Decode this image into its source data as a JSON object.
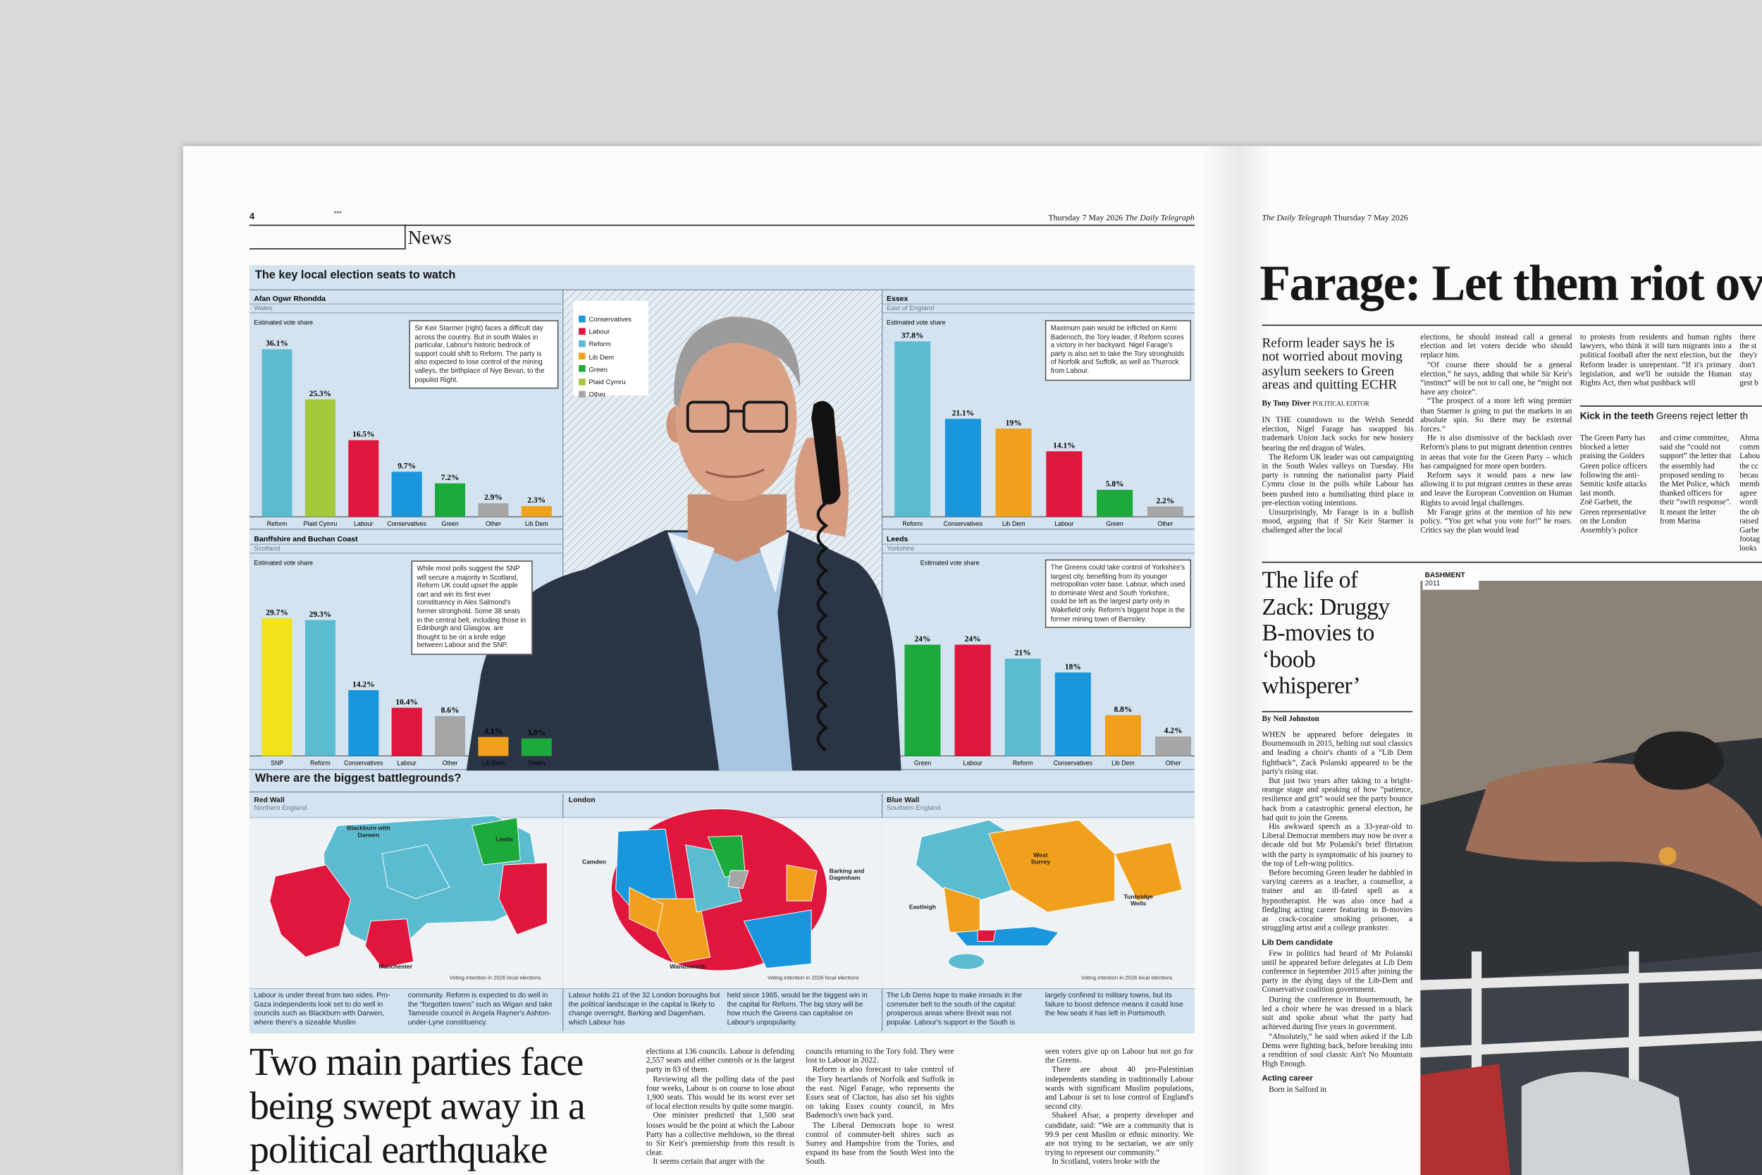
{
  "left_page": {
    "page_number": "4",
    "stars": "***",
    "dateline": "Thursday 7 May 2026",
    "paper": "The Daily Telegraph",
    "section": "News"
  },
  "infographic": {
    "title": "The key local election seats to watch",
    "legend": [
      {
        "name": "Conservatives",
        "color": "#1a96dd"
      },
      {
        "name": "Labour",
        "color": "#e0163c"
      },
      {
        "name": "Reform",
        "color": "#5bbcd1"
      },
      {
        "name": "Lib Dem",
        "color": "#f0a01c"
      },
      {
        "name": "Green",
        "color": "#1caa3c"
      },
      {
        "name": "Plaid Cymru",
        "color": "#a3c83a"
      },
      {
        "name": "Other",
        "color": "#a6a6a6"
      }
    ],
    "maps_title": "Where are the biggest battlegrounds?",
    "maps": [
      {
        "title": "Red Wall",
        "subtitle": "Northern England",
        "labels": [
          "Blackburn with Darwen",
          "Leeds",
          "Manchester"
        ],
        "source": "Voting intention in 2026 local elections",
        "caption": [
          "Labour is under threat from two sides. Pro-Gaza independents look set to do well in councils such as Blackburn with Darwen, where there's a sizeable Muslim",
          "community. Reform is expected to do well in the “forgotten towns” such as Wigan and take Tameside council in Angela Rayner's Ashton-under-Lyne constituency."
        ]
      },
      {
        "title": "London",
        "subtitle": "",
        "labels": [
          "Camden",
          "Barking and Dagenham",
          "Wandsworth"
        ],
        "source": "Voting intention in 2026 local elections",
        "caption": [
          "Labour holds 21 of the 32 London boroughs but the political landscape in the capital is likely to change overnight. Barking and Dagenham, which Labour has",
          "held since 1965, would be the biggest win in the capital for Reform. The big story will be how much the Greens can capitalise on Labour's unpopularity."
        ]
      },
      {
        "title": "Blue Wall",
        "subtitle": "Southern England",
        "labels": [
          "West Surrey",
          "Eastleigh",
          "Tunbridge Wells"
        ],
        "source": "Voting intention in 2026 local elections",
        "caption": [
          "The Lib Dems hope to make inroads in the commuter belt to the south of the capital: prosperous areas where Brexit was not popular. Labour's support in the South is",
          "largely confined to military towns, but its failure to boost defence means it could lose the few seats it has left in Portsmouth."
        ]
      }
    ]
  },
  "chart_data": [
    {
      "type": "bar",
      "title": "Afan Ogwr Rhondda",
      "subtitle": "Wales",
      "y_label": "Estimated vote share",
      "annotation": "Sir Keir Starmer (right) faces a difficult day across the country. But in south Wales in particular, Labour's historic bedrock of support could shift to Reform. The party is also expected to lose control of the mining valleys, the birthplace of Nye Bevan, to the populist Right.",
      "categories": [
        "Reform",
        "Plaid Cymru",
        "Labour",
        "Conservatives",
        "Green",
        "Other",
        "Lib Dem"
      ],
      "values": [
        36.1,
        25.3,
        16.5,
        9.7,
        7.2,
        2.9,
        2.3
      ],
      "value_labels": [
        "36.1%",
        "25.3%",
        "16.5%",
        "9.7%",
        "7.2%",
        "2.9%",
        "2.3%"
      ],
      "colors": [
        "#5bbcd1",
        "#a3c83a",
        "#e0163c",
        "#1a96dd",
        "#1caa3c",
        "#a6a6a6",
        "#f0a01c"
      ]
    },
    {
      "type": "bar",
      "title": "Banffshire and Buchan Coast",
      "subtitle": "Scotland",
      "y_label": "Estimated vote share",
      "annotation": "While most polls suggest the SNP will secure a majority in Scotland, Reform UK could upset the apple cart and win its first ever constituency in Alex Salmond's former stronghold. Some 38 seats in the central belt, including those in Edinburgh and Glasgow, are thought to be on a knife edge between Labour and the SNP.",
      "categories": [
        "SNP",
        "Reform",
        "Conservatives",
        "Labour",
        "Other",
        "Lib Dem",
        "Green"
      ],
      "values": [
        29.7,
        29.3,
        14.2,
        10.4,
        8.6,
        4.1,
        3.8
      ],
      "value_labels": [
        "29.7%",
        "29.3%",
        "14.2%",
        "10.4%",
        "8.6%",
        "4.1%",
        "3.8%"
      ],
      "colors": [
        "#f2e21c",
        "#5bbcd1",
        "#1a96dd",
        "#e0163c",
        "#a6a6a6",
        "#f0a01c",
        "#1caa3c"
      ]
    },
    {
      "type": "bar",
      "title": "Essex",
      "subtitle": "East of England",
      "y_label": "Estimated vote share",
      "annotation": "Maximum pain would be inflicted on Kemi Badenoch, the Tory leader, if Reform scores a victory in her backyard. Nigel Farage's party is also set to take the Tory strongholds of Norfolk and Suffolk, as well as Thurrock from Labour.",
      "categories": [
        "Reform",
        "Conservatives",
        "Lib Dem",
        "Labour",
        "Green",
        "Other"
      ],
      "values": [
        37.8,
        21.1,
        19,
        14.1,
        5.8,
        2.2
      ],
      "value_labels": [
        "37.8%",
        "21.1%",
        "19%",
        "14.1%",
        "5.8%",
        "2.2%"
      ],
      "colors": [
        "#5bbcd1",
        "#1a96dd",
        "#f0a01c",
        "#e0163c",
        "#1caa3c",
        "#a6a6a6"
      ]
    },
    {
      "type": "bar",
      "title": "Leeds",
      "subtitle": "Yorkshire",
      "y_label": "Estimated vote share",
      "annotation": "The Greens could take control of Yorkshire's largest city, benefiting from its younger metropolitan voter base. Labour, which used to dominate West and South Yorkshire, could be left as the largest party only in Wakefield only. Reform's biggest hope is the former mining town of Barnsley.",
      "categories": [
        "Green",
        "Labour",
        "Reform",
        "Conservatives",
        "Lib Dem",
        "Other"
      ],
      "values": [
        24,
        24,
        21,
        18,
        8.8,
        4.2
      ],
      "value_labels": [
        "24%",
        "24%",
        "21%",
        "18%",
        "8.8%",
        "4.2%"
      ],
      "colors": [
        "#1caa3c",
        "#e0163c",
        "#5bbcd1",
        "#1a96dd",
        "#f0a01c",
        "#a6a6a6"
      ]
    }
  ],
  "main_story": {
    "headline": "Two main parties face being swept away in a political earthquake",
    "columns": [
      [
        "elections at 136 councils. Labour is defending 2,557 seats and either controls or is the largest party in 83 of them.",
        "Reviewing all the polling data of the past four weeks, Labour is on course to lose about 1,900 seats. This would be its worst ever set of local election results by quite some margin.",
        "One minister predicted that 1,500 seat losses would be the point at which the Labour Party has a collective meltdown, so the threat to Sir Keir's premiership from this result is clear.",
        "It seems certain that anger with the"
      ],
      [
        "councils returning to the Tory fold. They were lost to Labour in 2022.",
        "Reform is also forecast to take control of the Tory heartlands of Norfolk and Suffolk in the east. Nigel Farage, who represents the Essex seat of Clacton, has also set his sights on taking Essex county council, in Mrs Badenoch's own back yard.",
        "The Liberal Democrats hope to wrest control of commuter-belt shires such as Surrey and Hampshire from the Tories, and expand its base from the South West into the South."
      ],
      [
        "seen voters give up on Labour but not go for the Greens.",
        "There are about 40 pro-Palestinian independents standing in traditionally Labour wards with significant Muslim populations, and Labour is set to lose control of England's second city.",
        "Shakeel Afsar, a property developer and candidate, said: “We are a community that is 99.9 per cent Muslim or ethnic minority. We are not trying to be sectarian, we are only trying to represent our community.”",
        "In Scotland, voters broke with the"
      ]
    ]
  },
  "right_page": {
    "paper": "The Daily Telegraph",
    "dateline": "Thursday 7 May 2026",
    "headline": "Farage: Let them riot ov",
    "standfirst": "Reform leader says he is not worried about moving asylum seekers to Green areas and quitting ECHR",
    "byline": "By Tony Diver",
    "byline_role": "POLITICAL EDITOR",
    "columns": [
      [
        "IN THE countdown to the Welsh Senedd election, Nigel Farage has swapped his trademark Union Jack socks for new hosiery bearing the red dragon of Wales.",
        "The Reform UK leader was out campaigning in the South Wales valleys on Tuesday. His party is running the nationalist party Plaid Cymru close in the polls while Labour has been pushed into a humiliating third place in pre-election voting intentions.",
        "Unsurprisingly, Mr Farage is in a bullish mood, arguing that if Sir Keir Starmer is challenged after the local"
      ],
      [
        "elections, he should instead call a general election and let voters decide who should replace him.",
        "“Of course there should be a general election,” he says, adding that while Sir Keir's “instinct” will be not to call one, he “might not have any choice”.",
        "“The prospect of a more left wing premier than Starmer is going to put the markets in an absolute spin. So there may be external forces.”",
        "He is also dismissive of the backlash over Reform's plans to put migrant detention centres in areas that vote for the Green Party – which has campaigned for more open borders.",
        "Reform says it would pass a new law allowing it to put migrant centres in these areas and leave the European Convention on Human Rights to avoid legal challenges.",
        "Mr Farage grins at the mention of his new policy. “You get what you vote for!” he roars. Critics say the plan would lead"
      ],
      [
        "to protests from residents and human rights lawyers, who think it will turn migrants into a political football after the next election, but the Reform leader is unrepentant. “If it's primary legislation, and we'll be outside the Human Rights Act, then what pushback will"
      ],
      [
        "there",
        "the st",
        "they'r",
        "don't",
        "stay",
        "gest b"
      ]
    ],
    "brief": {
      "kicker": "Kick in the teeth",
      "headline": "Greens reject letter th",
      "columns": [
        [
          "The Green Party has blocked a letter praising the Golders Green police officers following the anti-Semitic knife attacks last month.",
          "Zoë Garbett, the Green representative on the London Assembly's police"
        ],
        [
          "and crime committee, said she “could not support” the letter that the assembly had proposed sending to the Met Police, which thanked officers for their “swift response”.",
          "It meant the letter from Marina"
        ],
        [
          "Ahma",
          "comm",
          "Labou",
          "the cc",
          "becau",
          "memb",
          "agree",
          "wordi",
          "the ob",
          "raised",
          "Garbe",
          "footag",
          "looks"
        ]
      ]
    },
    "feature": {
      "headline": "The life of Zack: Druggy B-movies to ‘boob whisperer’",
      "byline": "By Neil Johnston",
      "intro": [
        "WHEN he appeared before delegates in Bournemouth in 2015, belting out soul classics and leading a choir's chants of a “Lib Dem fightback”, Zack Polanski appeared to be the party's rising star.",
        "But just two years after taking to a bright-orange stage and speaking of how “patience, resilience and grit” would see the party bounce back from a catastrophic general election, he had quit to join the Greens.",
        "His awkward speech as a 33-year-old to Liberal Democrat members may now be over a decade old but Mr Polanski's brief flirtation with the party is symptomatic of his journey to the top of Left-wing politics.",
        "Before becoming Green leader he dabbled in varying careers as a teacher, a counsellor, a trainer and an ill-fated spell as a hypnotherapist. He was also once had a fledgling acting career featuring in B-movies as crack-cocaine smoking prisoner, a struggling artist and a college prankster."
      ],
      "sections": [
        {
          "heading": "Lib Dem candidate",
          "paragraphs": [
            "Few in politics had heard of Mr Polanski until he appeared before delegates at Lib Dem conference in September 2015 after joining the party in the dying days of the Lib-Dem and Conservative coalition government.",
            "During the conference in Bournemouth, he led a choir where he was dressed in a black suit and spoke about what the party had achieved during five years in government.",
            "“Absolutely,” he said when asked if the Lib Dems were fighting back, before breaking into a rendition of soul classic Ain't No Mountain High Enough."
          ]
        },
        {
          "heading": "Acting career",
          "paragraphs": [
            "Born in Salford in"
          ]
        }
      ],
      "photo_label": "BASHMENT",
      "photo_year": "2011"
    }
  }
}
